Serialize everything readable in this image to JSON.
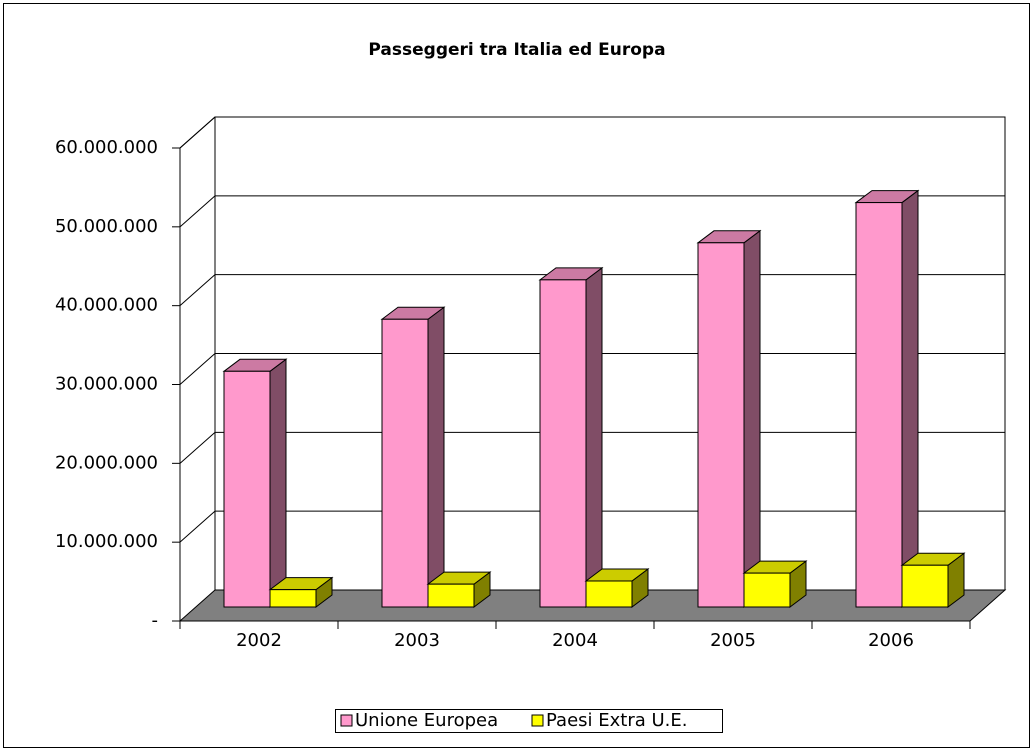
{
  "chart_data": {
    "type": "bar3d",
    "title": "Passeggeri tra Italia ed Europa",
    "categories": [
      "2002",
      "2003",
      "2004",
      "2005",
      "2006"
    ],
    "series": [
      {
        "name": "Unione Europea",
        "color": "#ff99cc",
        "values": [
          29900000,
          36500000,
          41500000,
          46200000,
          51300000
        ]
      },
      {
        "name": "Paesi Extra U.E.",
        "color": "#ffff00",
        "values": [
          2200000,
          2900000,
          3300000,
          4300000,
          5300000
        ]
      }
    ],
    "ylim": [
      0,
      60000000
    ],
    "yticks": [
      {
        "value": 0,
        "label": "-"
      },
      {
        "value": 10000000,
        "label": "10.000.000"
      },
      {
        "value": 20000000,
        "label": "20.000.000"
      },
      {
        "value": 30000000,
        "label": "30.000.000"
      },
      {
        "value": 40000000,
        "label": "40.000.000"
      },
      {
        "value": 50000000,
        "label": "50.000.000"
      },
      {
        "value": 60000000,
        "label": "60.000.000"
      }
    ],
    "grid": true,
    "legend": "bottom"
  }
}
